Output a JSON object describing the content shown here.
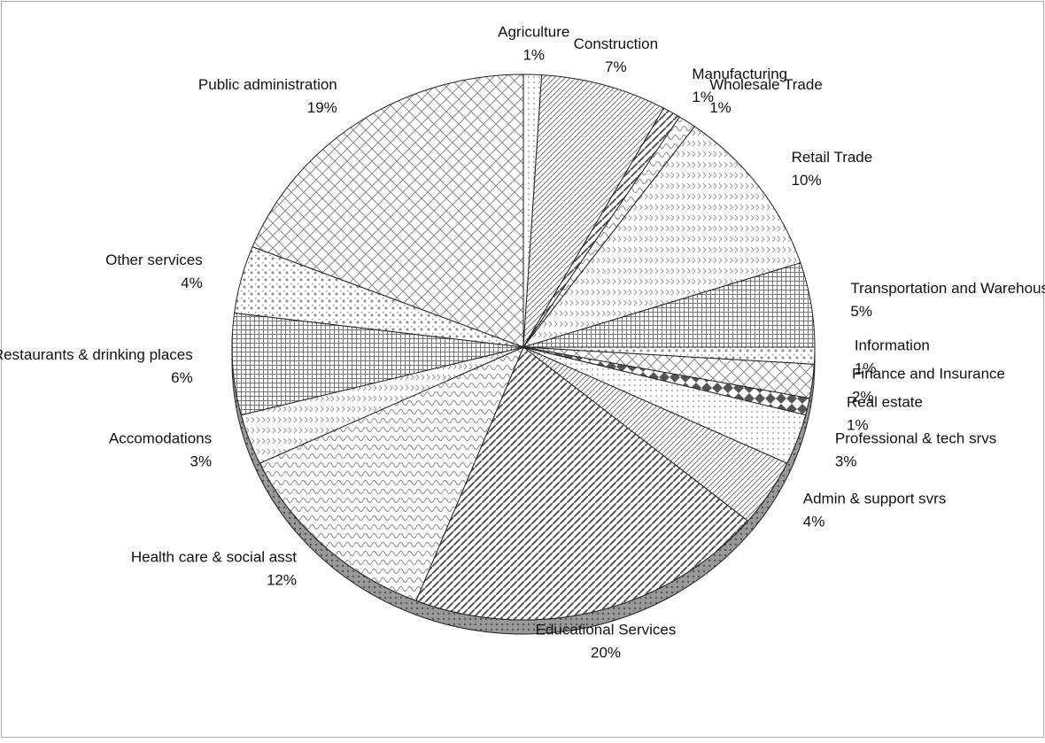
{
  "chart_data": {
    "type": "pie",
    "categories": [
      "Agriculture",
      "Construction",
      "Manufacturing",
      "Wholesale Trade",
      "Retail Trade",
      "Transportation and Warehousing",
      "Information",
      "Finance and Insurance",
      "Real estate",
      "Professional & tech srvs",
      "Admin & support svrs",
      "Educational Services",
      "Health care & social asst",
      "Accomodations",
      "Restaurants & drinking places",
      "Other services",
      "Public administration"
    ],
    "values": [
      1,
      7,
      1,
      1,
      10,
      5,
      1,
      2,
      1,
      3,
      4,
      20,
      12,
      3,
      6,
      4,
      19
    ],
    "value_labels": [
      "1%",
      "7%",
      "1%",
      "1%",
      "10%",
      "5%",
      "1%",
      "2%",
      "1%",
      "3%",
      "4%",
      "20%",
      "12%",
      "3%",
      "6%",
      "4%",
      "19%"
    ]
  }
}
